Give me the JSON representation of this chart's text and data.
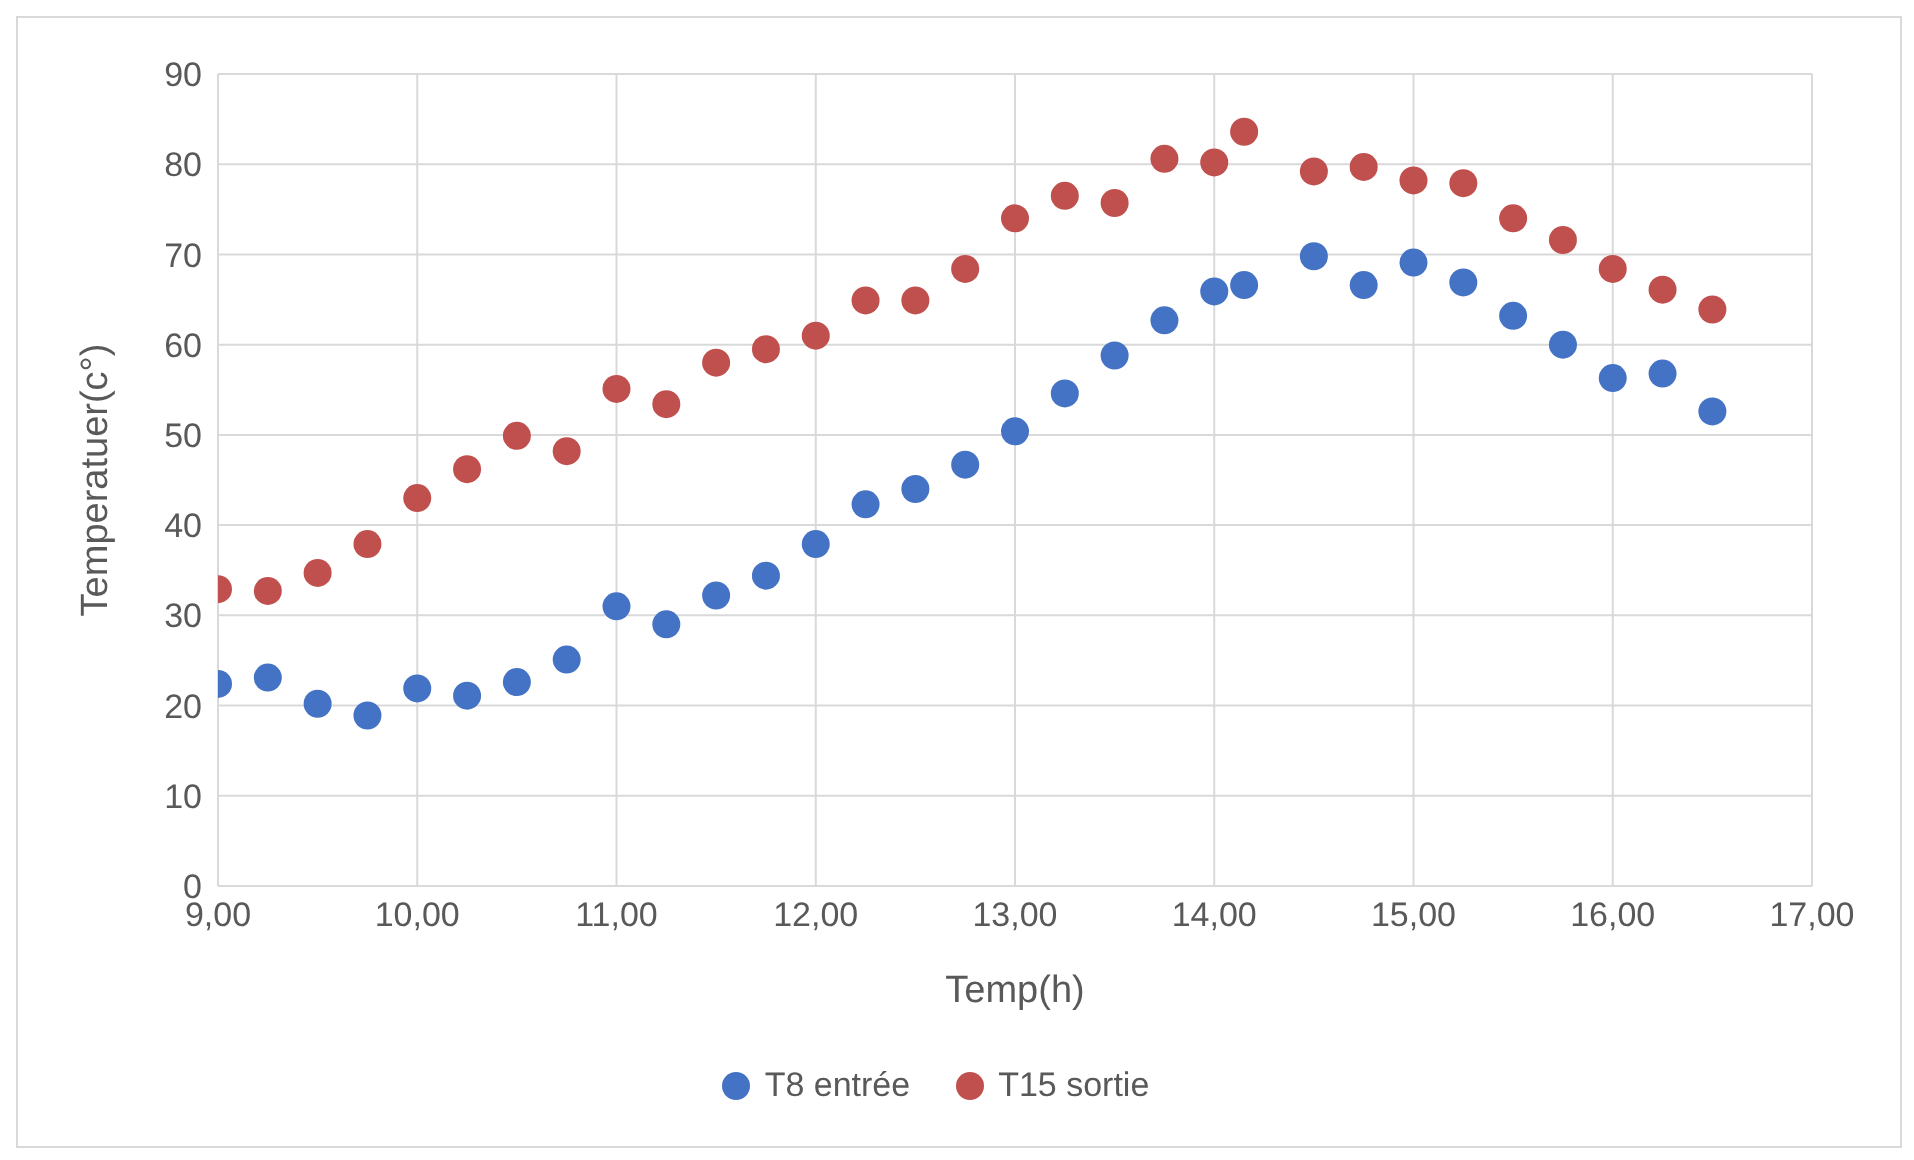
{
  "chart_data": {
    "type": "scatter",
    "xlabel": "Temp(h)",
    "ylabel": "Temperatuer(c°)",
    "xlim": [
      9,
      17
    ],
    "xticks": [
      {
        "value": 9,
        "label": "9,00"
      },
      {
        "value": 10,
        "label": "10,00"
      },
      {
        "value": 11,
        "label": "11,00"
      },
      {
        "value": 12,
        "label": "12,00"
      },
      {
        "value": 13,
        "label": "13,00"
      },
      {
        "value": 14,
        "label": "14,00"
      },
      {
        "value": 15,
        "label": "15,00"
      },
      {
        "value": 16,
        "label": "16,00"
      },
      {
        "value": 17,
        "label": "17,00"
      }
    ],
    "ylim": [
      0,
      90
    ],
    "yticks": [
      0,
      10,
      20,
      30,
      40,
      50,
      60,
      70,
      80,
      90
    ],
    "grid": true,
    "legend": "bottom",
    "marker": "circle",
    "x": [
      9,
      9.25,
      9.5,
      9.75,
      10,
      10.25,
      10.5,
      10.75,
      11,
      11.25,
      11.5,
      11.75,
      12,
      12.25,
      12.5,
      12.75,
      13,
      13.25,
      13.5,
      13.75,
      14,
      14.15,
      14.5,
      14.75,
      15,
      15.25,
      15.5,
      15.75,
      16,
      16.25,
      16.5
    ],
    "series": [
      {
        "name": "T8 entrée",
        "color": "#4472c4",
        "values": [
          22.4,
          23.1,
          20.2,
          18.9,
          21.9,
          21.1,
          22.6,
          25.1,
          31.0,
          29.0,
          32.2,
          34.4,
          37.9,
          42.3,
          44.0,
          46.7,
          50.4,
          54.6,
          58.8,
          62.7,
          65.9,
          66.6,
          69.8,
          66.6,
          69.1,
          66.9,
          63.2,
          60.0,
          56.3,
          56.8,
          52.6
        ]
      },
      {
        "name": "T15 sortie",
        "color": "#c0504d",
        "values": [
          32.9,
          32.7,
          34.7,
          37.9,
          43.0,
          46.2,
          49.9,
          48.2,
          55.1,
          53.4,
          58.0,
          59.5,
          61.0,
          64.9,
          64.9,
          68.4,
          74.0,
          76.5,
          75.7,
          80.6,
          80.2,
          83.6,
          79.2,
          79.7,
          78.2,
          77.9,
          74.0,
          71.6,
          68.4,
          66.1,
          63.9
        ]
      }
    ]
  }
}
